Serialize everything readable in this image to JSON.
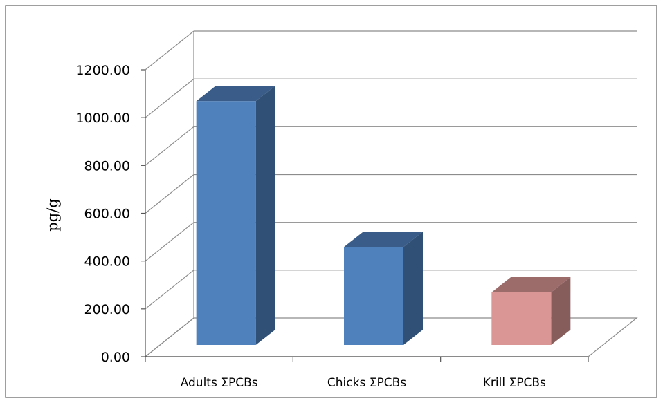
{
  "chart_data": {
    "type": "bar",
    "style": "3d-clustered-column",
    "title": "",
    "xlabel": "",
    "ylabel": "pg/g",
    "ylim": [
      0,
      1200
    ],
    "y_ticks": [
      "0.00",
      "200.00",
      "400.00",
      "600.00",
      "800.00",
      "1000.00",
      "1200.00"
    ],
    "categories": [
      "Adults ΣPCBs",
      "Chicks ΣPCBs",
      "Krill ΣPCBs"
    ],
    "values": [
      1020,
      410,
      220
    ],
    "bar_colors": [
      "#4f81bd",
      "#4f81bd",
      "#d99694"
    ],
    "grid": true,
    "legend": "none"
  }
}
